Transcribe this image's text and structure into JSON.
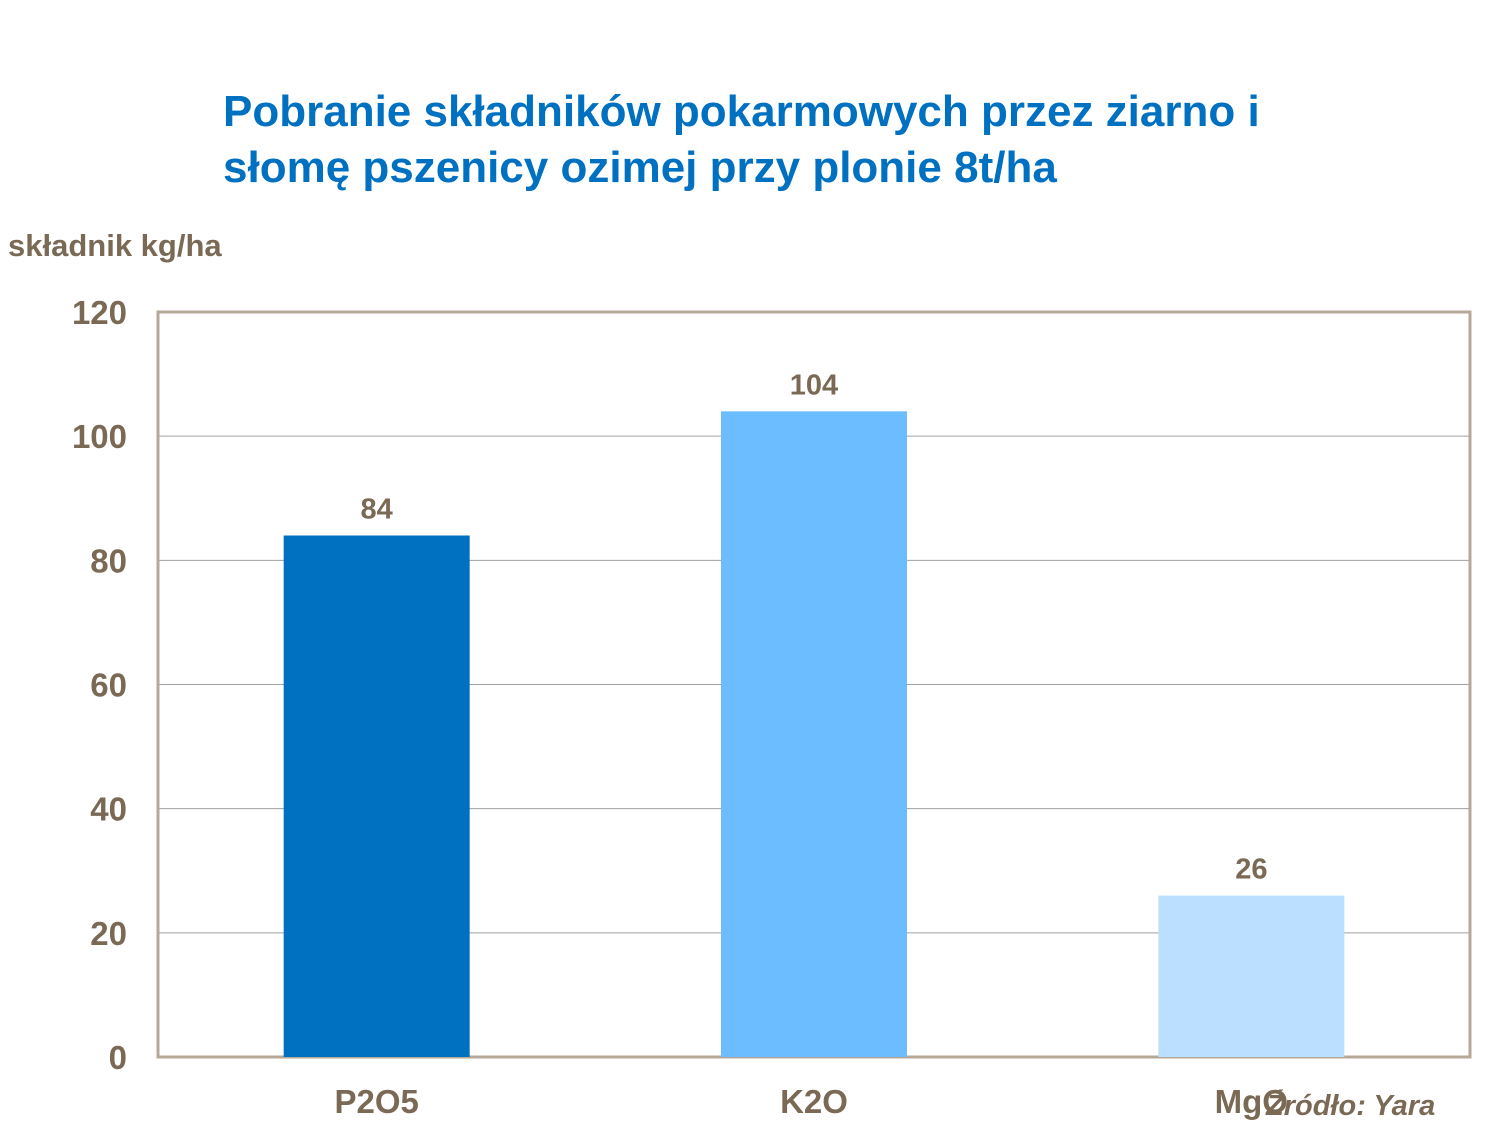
{
  "header": {
    "title_line1": "Pobranie składników pokarmowych przez ziarno i",
    "title_line2": "słomę pszenicy ozimej przy plonie 8t/ha"
  },
  "source_note": "Źródło: Yara",
  "chart_data": {
    "type": "bar",
    "title": "Pobranie składników pokarmowych przez ziarno i słomę pszenicy ozimej przy plonie 8t/ha",
    "ylabel": "składnik kg/ha",
    "xlabel": "",
    "categories": [
      "P2O5",
      "K2O",
      "MgO"
    ],
    "values": [
      84,
      104,
      26
    ],
    "bar_colors": [
      "#0070c0",
      "#6bbdff",
      "#bbdffe"
    ],
    "ylim": [
      0,
      120
    ],
    "yticks": [
      0,
      20,
      40,
      60,
      80,
      100,
      120
    ],
    "grid": true,
    "data_labels": true,
    "legend": "none",
    "colors": {
      "axis": "#b5a898",
      "grid": "#a0a0a0",
      "text": "#7a6a55",
      "title": "#0070c0"
    }
  }
}
